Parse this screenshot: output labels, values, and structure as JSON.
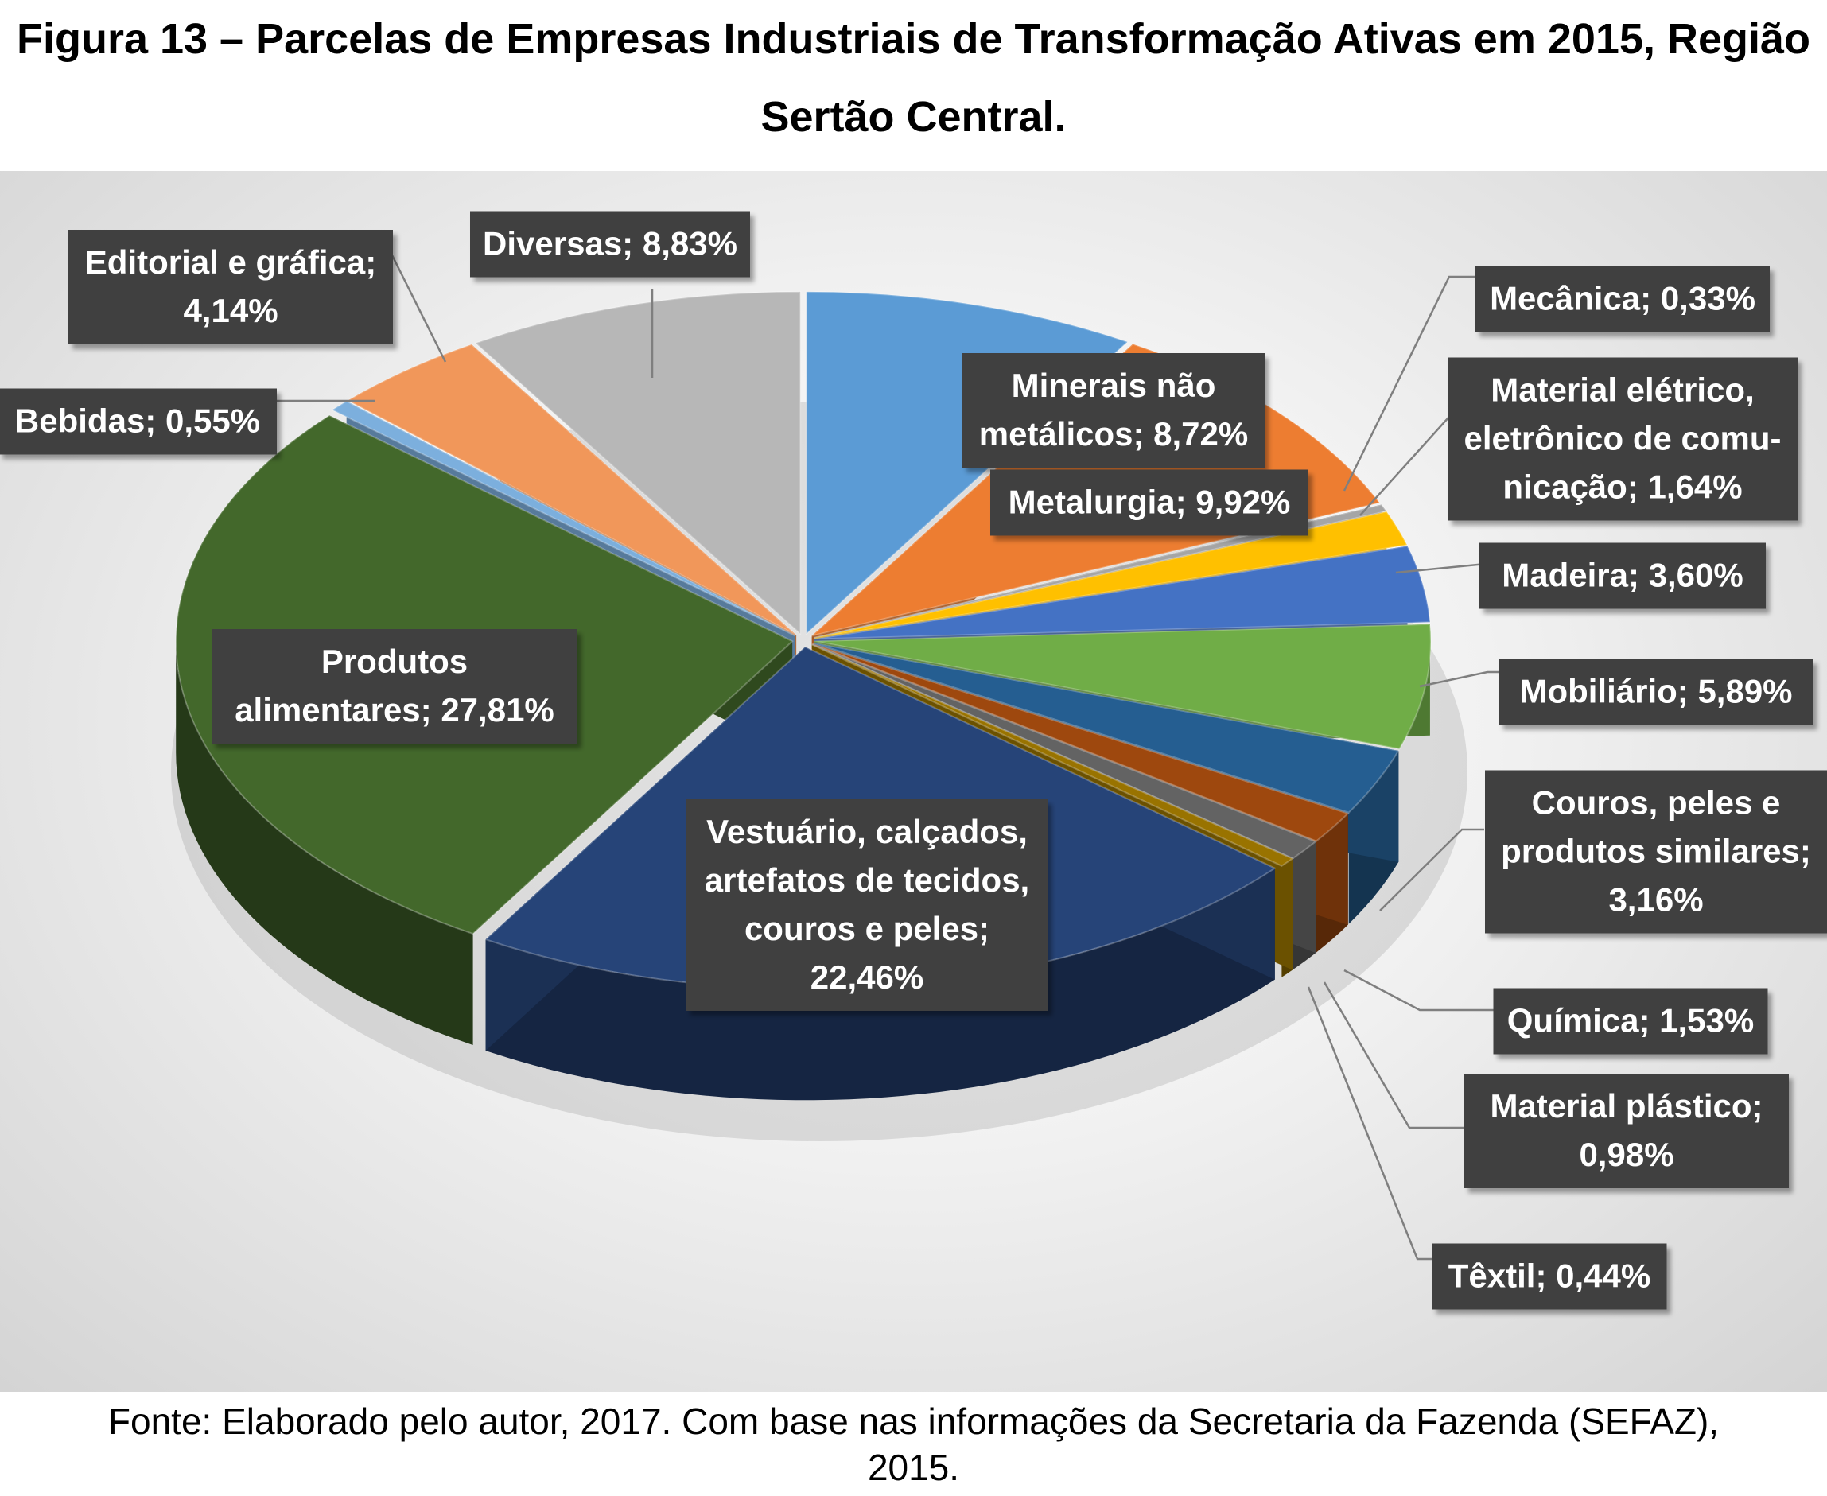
{
  "title": {
    "line1": "Figura 13 – Parcelas de Empresas Industriais de Transformação Ativas em 2015, Região",
    "line2": "Sertão Central."
  },
  "source": {
    "line1": "Fonte: Elaborado pelo autor, 2017. Com base nas informações da Secretaria da Fazenda (SEFAZ),",
    "line2": "2015."
  },
  "chart_data": {
    "type": "pie",
    "style": "3D exploded pie with callout data labels",
    "unit": "%",
    "slices": [
      {
        "category": "Minerais não metálicos",
        "value": 8.72,
        "label_lines": [
          "Minerais não",
          "metálicos; 8,72%"
        ],
        "color": "#5B9BD5"
      },
      {
        "category": "Metalurgia",
        "value": 9.92,
        "label_lines": [
          "Metalurgia; 9,92%"
        ],
        "color": "#ED7D31"
      },
      {
        "category": "Mecânica",
        "value": 0.33,
        "label_lines": [
          "Mecânica; 0,33%"
        ],
        "color": "#A5A5A5"
      },
      {
        "category": "Material elétrico, eletrônico de comunicação",
        "value": 1.64,
        "label_lines": [
          "Material elétrico,",
          "eletrônico de comu-",
          "nicação; 1,64%"
        ],
        "color": "#FFC000"
      },
      {
        "category": "Madeira",
        "value": 3.6,
        "label_lines": [
          "Madeira; 3,60%"
        ],
        "color": "#4472C4"
      },
      {
        "category": "Mobiliário",
        "value": 5.89,
        "label_lines": [
          "Mobiliário; 5,89%"
        ],
        "color": "#70AD47"
      },
      {
        "category": "Couros, peles e produtos similares",
        "value": 3.16,
        "label_lines": [
          "Couros, peles e",
          "produtos similares;",
          "3,16%"
        ],
        "color": "#255E91"
      },
      {
        "category": "Química",
        "value": 1.53,
        "label_lines": [
          "Química; 1,53%"
        ],
        "color": "#9E480E"
      },
      {
        "category": "Material plástico",
        "value": 0.98,
        "label_lines": [
          "Material plástico;",
          "0,98%"
        ],
        "color": "#636363"
      },
      {
        "category": "Têxtil",
        "value": 0.44,
        "label_lines": [
          "Têxtil; 0,44%"
        ],
        "color": "#997300"
      },
      {
        "category": "Vestuário, calçados, artefatos de tecidos, couros e peles",
        "value": 22.46,
        "label_lines": [
          "Vestuário, calçados,",
          "artefatos de tecidos,",
          "couros e peles;",
          "22,46%"
        ],
        "color": "#264478"
      },
      {
        "category": "Produtos alimentares",
        "value": 27.81,
        "label_lines": [
          "Produtos",
          "alimentares; 27,81%"
        ],
        "color": "#43682B"
      },
      {
        "category": "Bebidas",
        "value": 0.55,
        "label_lines": [
          "Bebidas; 0,55%"
        ],
        "color": "#7CAFDD"
      },
      {
        "category": "Editorial e gráfica",
        "value": 4.14,
        "label_lines": [
          "Editorial e gráfica;",
          "4,14%"
        ],
        "color": "#F1975A"
      },
      {
        "category": "Diversas",
        "value": 8.83,
        "label_lines": [
          "Diversas; 8,83%"
        ],
        "color": "#B7B7B7"
      }
    ],
    "label_style": {
      "box_color": "#404040",
      "text_color": "#FFFFFF",
      "leader_color": "#7F7F7F"
    }
  }
}
